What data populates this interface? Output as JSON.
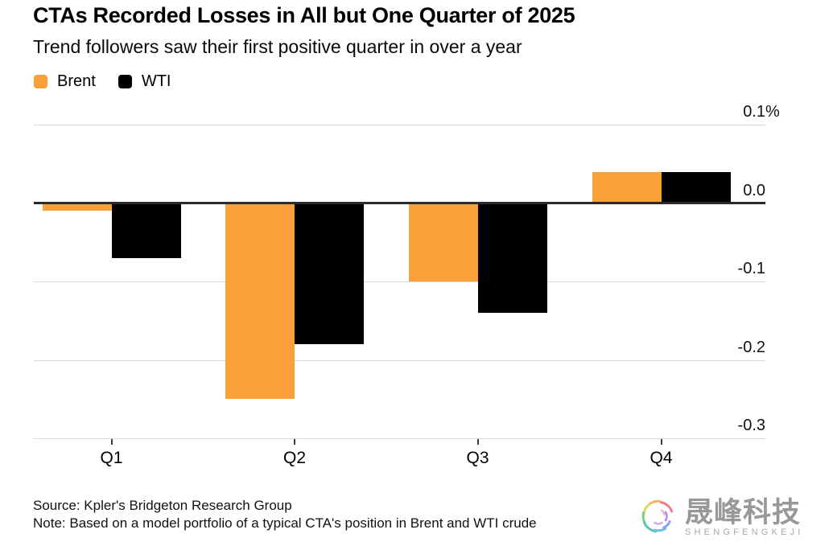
{
  "chart_data": {
    "type": "bar",
    "title": "CTAs Recorded Losses in All but One Quarter of 2025",
    "subtitle": "Trend followers saw their first positive quarter in over a year",
    "categories": [
      "Q1",
      "Q2",
      "Q3",
      "Q4"
    ],
    "series": [
      {
        "name": "Brent",
        "color": "#F9A038",
        "values": [
          -0.01,
          -0.25,
          -0.1,
          0.04
        ]
      },
      {
        "name": "WTI",
        "color": "#000000",
        "values": [
          -0.07,
          -0.18,
          -0.14,
          0.04
        ]
      }
    ],
    "xlabel": "",
    "ylabel": "",
    "ylim": [
      -0.3,
      0.1
    ],
    "yticks": [
      0.1,
      0,
      -0.1,
      -0.2,
      -0.3
    ],
    "ytick_labels": [
      "0.1",
      "0.0",
      "-0.1",
      "-0.2",
      "-0.3"
    ],
    "ytick_suffix": "%",
    "grid": "horizontal",
    "legend_position": "top-left"
  },
  "footer": {
    "source": "Source: Kpler's Bridgeton Research Group",
    "note": "Note: Based on a model portfolio of a typical CTA's position in Brent and WTI crude"
  },
  "watermark": {
    "name_zh": "晟峰科技",
    "name_en": "SHENGFENGKEJI"
  },
  "colors": {
    "gridline": "#D9D9D9",
    "zero_line": "#2B2B2B",
    "axis_tick": "#3C3C3C",
    "brent_orange": "#F9A038",
    "wti_black": "#000000",
    "watermark_gray": "#8A8A8A"
  }
}
